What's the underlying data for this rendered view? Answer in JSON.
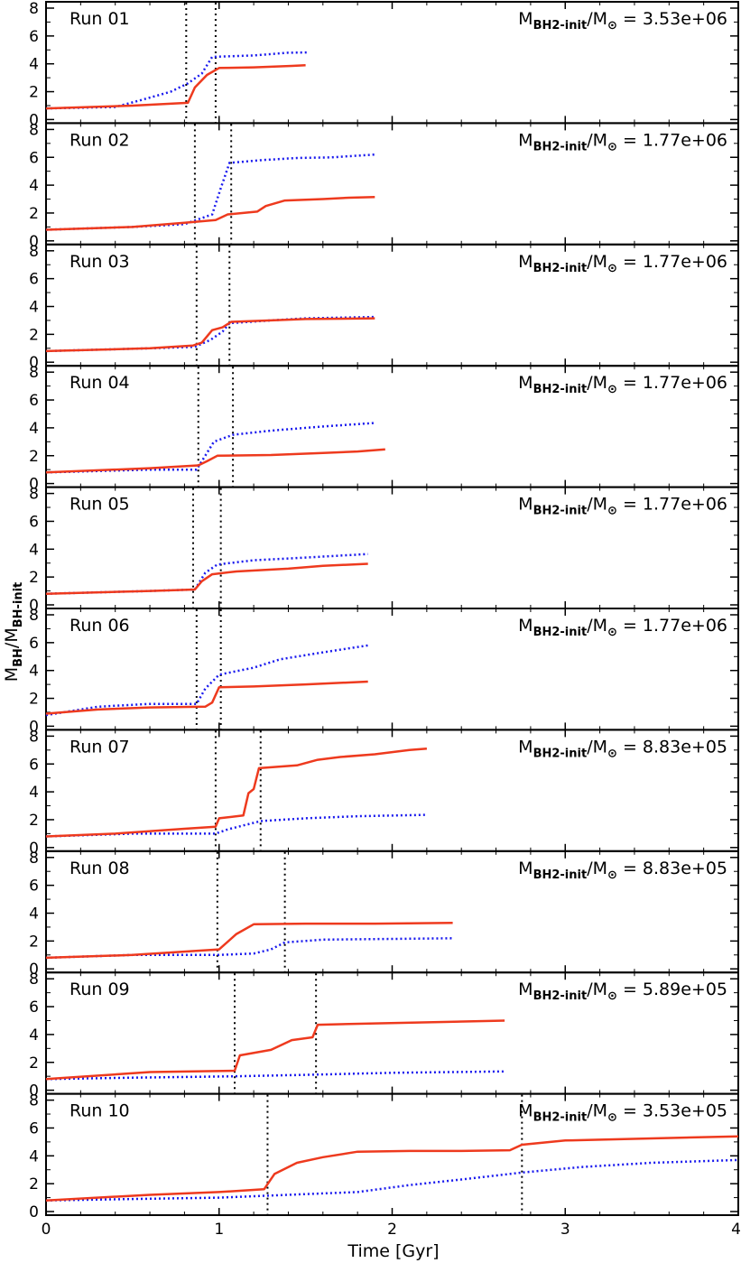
{
  "chart_data": {
    "type": "line",
    "xlabel": "Time [Gyr]",
    "ylabel": {
      "main": "M",
      "sub1": "BH",
      "slash": "/M",
      "sub2": "BH-init"
    },
    "xlim": [
      0,
      4
    ],
    "ylim": [
      0,
      8
    ],
    "x_ticks": [
      0,
      1,
      2,
      3,
      4
    ],
    "y_ticks": [
      0,
      2,
      4,
      6,
      8
    ],
    "mass_label_parts": {
      "prefix": "M",
      "sub": "BH2-init",
      "slash": "/M",
      "sun": "⊙",
      "eq": " = "
    },
    "colors": {
      "red": "#ee3a1e",
      "blue": "#1a1aee",
      "vline": "#000000"
    },
    "series_names": [
      "red solid",
      "blue dotted"
    ],
    "panels": [
      {
        "run": "Run 01",
        "mass": "3.53e+06",
        "vlines": [
          0.81,
          0.98
        ],
        "red": [
          [
            0,
            0.8
          ],
          [
            0.5,
            1.0
          ],
          [
            0.82,
            1.2
          ],
          [
            0.86,
            2.3
          ],
          [
            0.93,
            3.2
          ],
          [
            1.0,
            3.7
          ],
          [
            1.2,
            3.75
          ],
          [
            1.42,
            3.85
          ],
          [
            1.5,
            3.9
          ]
        ],
        "blue": [
          [
            0,
            0.8
          ],
          [
            0.4,
            0.9
          ],
          [
            0.55,
            1.4
          ],
          [
            0.72,
            2.0
          ],
          [
            0.82,
            2.6
          ],
          [
            0.9,
            3.3
          ],
          [
            0.96,
            4.5
          ],
          [
            1.2,
            4.6
          ],
          [
            1.4,
            4.8
          ],
          [
            1.51,
            4.82
          ]
        ]
      },
      {
        "run": "Run 02",
        "mass": "1.77e+06",
        "vlines": [
          0.86,
          1.07
        ],
        "red": [
          [
            0,
            0.8
          ],
          [
            0.5,
            1.0
          ],
          [
            0.8,
            1.3
          ],
          [
            0.98,
            1.5
          ],
          [
            1.05,
            1.9
          ],
          [
            1.22,
            2.1
          ],
          [
            1.27,
            2.5
          ],
          [
            1.38,
            2.9
          ],
          [
            1.6,
            3.0
          ],
          [
            1.75,
            3.1
          ],
          [
            1.9,
            3.15
          ]
        ],
        "blue": [
          [
            0,
            0.8
          ],
          [
            0.5,
            1.0
          ],
          [
            0.8,
            1.2
          ],
          [
            0.96,
            1.9
          ],
          [
            1.01,
            3.8
          ],
          [
            1.06,
            5.6
          ],
          [
            1.25,
            5.8
          ],
          [
            1.45,
            5.95
          ],
          [
            1.65,
            6.0
          ],
          [
            1.9,
            6.2
          ]
        ]
      },
      {
        "run": "Run 03",
        "mass": "1.77e+06",
        "vlines": [
          0.87,
          1.06
        ],
        "red": [
          [
            0,
            0.8
          ],
          [
            0.6,
            1.0
          ],
          [
            0.85,
            1.2
          ],
          [
            0.9,
            1.4
          ],
          [
            0.96,
            2.3
          ],
          [
            1.02,
            2.5
          ],
          [
            1.07,
            2.9
          ],
          [
            1.3,
            3.0
          ],
          [
            1.5,
            3.1
          ],
          [
            1.9,
            3.15
          ]
        ],
        "blue": [
          [
            0,
            0.8
          ],
          [
            0.6,
            1.0
          ],
          [
            0.86,
            1.1
          ],
          [
            0.95,
            1.6
          ],
          [
            1.02,
            2.2
          ],
          [
            1.06,
            2.8
          ],
          [
            1.3,
            3.0
          ],
          [
            1.5,
            3.15
          ],
          [
            1.9,
            3.25
          ]
        ]
      },
      {
        "run": "Run 04",
        "mass": "1.77e+06",
        "vlines": [
          0.88,
          1.08
        ],
        "red": [
          [
            0,
            0.8
          ],
          [
            0.6,
            1.1
          ],
          [
            0.88,
            1.3
          ],
          [
            0.93,
            1.6
          ],
          [
            0.99,
            2.0
          ],
          [
            1.3,
            2.05
          ],
          [
            1.6,
            2.2
          ],
          [
            1.8,
            2.3
          ],
          [
            1.96,
            2.45
          ]
        ],
        "blue": [
          [
            0,
            0.8
          ],
          [
            0.6,
            1.0
          ],
          [
            0.87,
            1.0
          ],
          [
            0.92,
            2.0
          ],
          [
            0.97,
            3.0
          ],
          [
            1.08,
            3.5
          ],
          [
            1.3,
            3.8
          ],
          [
            1.6,
            4.1
          ],
          [
            1.9,
            4.35
          ]
        ]
      },
      {
        "run": "Run 05",
        "mass": "1.77e+06",
        "vlines": [
          0.85,
          1.01
        ],
        "red": [
          [
            0,
            0.8
          ],
          [
            0.6,
            1.0
          ],
          [
            0.86,
            1.1
          ],
          [
            0.9,
            1.7
          ],
          [
            0.96,
            2.2
          ],
          [
            1.1,
            2.4
          ],
          [
            1.4,
            2.6
          ],
          [
            1.6,
            2.8
          ],
          [
            1.86,
            2.95
          ]
        ],
        "blue": [
          [
            0,
            0.8
          ],
          [
            0.6,
            1.0
          ],
          [
            0.86,
            1.1
          ],
          [
            0.92,
            2.3
          ],
          [
            0.99,
            2.9
          ],
          [
            1.2,
            3.2
          ],
          [
            1.5,
            3.4
          ],
          [
            1.86,
            3.65
          ]
        ]
      },
      {
        "run": "Run 06",
        "mass": "1.77e+06",
        "vlines": [
          0.87,
          1.01
        ],
        "red": [
          [
            0,
            0.9
          ],
          [
            0.3,
            1.2
          ],
          [
            0.6,
            1.35
          ],
          [
            0.92,
            1.4
          ],
          [
            0.96,
            1.7
          ],
          [
            1.0,
            2.8
          ],
          [
            1.2,
            2.85
          ],
          [
            1.5,
            3.0
          ],
          [
            1.86,
            3.2
          ]
        ],
        "blue": [
          [
            0,
            0.8
          ],
          [
            0.3,
            1.4
          ],
          [
            0.6,
            1.6
          ],
          [
            0.87,
            1.6
          ],
          [
            0.92,
            2.7
          ],
          [
            1.0,
            3.7
          ],
          [
            1.2,
            4.2
          ],
          [
            1.35,
            4.8
          ],
          [
            1.6,
            5.3
          ],
          [
            1.86,
            5.8
          ]
        ]
      },
      {
        "run": "Run 07",
        "mass": "8.83e+05",
        "vlines": [
          0.98,
          1.24
        ],
        "red": [
          [
            0,
            0.8
          ],
          [
            0.4,
            1.0
          ],
          [
            0.8,
            1.35
          ],
          [
            0.98,
            1.5
          ],
          [
            1.0,
            2.1
          ],
          [
            1.14,
            2.3
          ],
          [
            1.17,
            3.9
          ],
          [
            1.2,
            4.2
          ],
          [
            1.23,
            5.7
          ],
          [
            1.45,
            5.9
          ],
          [
            1.57,
            6.3
          ],
          [
            1.7,
            6.5
          ],
          [
            1.9,
            6.7
          ],
          [
            2.1,
            7.0
          ],
          [
            2.2,
            7.1
          ]
        ],
        "blue": [
          [
            0,
            0.8
          ],
          [
            0.5,
            1.0
          ],
          [
            0.98,
            1.0
          ],
          [
            1.05,
            1.3
          ],
          [
            1.24,
            1.9
          ],
          [
            1.5,
            2.1
          ],
          [
            1.8,
            2.25
          ],
          [
            2.2,
            2.35
          ]
        ]
      },
      {
        "run": "Run 08",
        "mass": "8.83e+05",
        "vlines": [
          0.99,
          1.38
        ],
        "red": [
          [
            0,
            0.8
          ],
          [
            0.5,
            1.0
          ],
          [
            1.0,
            1.4
          ],
          [
            1.1,
            2.5
          ],
          [
            1.2,
            3.2
          ],
          [
            1.5,
            3.25
          ],
          [
            1.9,
            3.25
          ],
          [
            2.35,
            3.3
          ]
        ],
        "blue": [
          [
            0,
            0.8
          ],
          [
            0.5,
            1.0
          ],
          [
            0.99,
            1.0
          ],
          [
            1.2,
            1.1
          ],
          [
            1.3,
            1.4
          ],
          [
            1.38,
            1.9
          ],
          [
            1.6,
            2.1
          ],
          [
            2.35,
            2.2
          ]
        ]
      },
      {
        "run": "Run 09",
        "mass": "5.89e+05",
        "vlines": [
          1.09,
          1.56
        ],
        "red": [
          [
            0,
            0.8
          ],
          [
            0.6,
            1.3
          ],
          [
            1.09,
            1.4
          ],
          [
            1.12,
            2.5
          ],
          [
            1.3,
            2.9
          ],
          [
            1.42,
            3.6
          ],
          [
            1.54,
            3.8
          ],
          [
            1.57,
            4.7
          ],
          [
            1.9,
            4.8
          ],
          [
            2.3,
            4.9
          ],
          [
            2.65,
            5.0
          ]
        ],
        "blue": [
          [
            0,
            0.8
          ],
          [
            0.5,
            0.9
          ],
          [
            1.09,
            1.0
          ],
          [
            1.5,
            1.1
          ],
          [
            2.0,
            1.25
          ],
          [
            2.65,
            1.35
          ]
        ]
      },
      {
        "run": "Run 10",
        "mass": "3.53e+05",
        "vlines": [
          1.28,
          2.75
        ],
        "red": [
          [
            0,
            0.8
          ],
          [
            0.6,
            1.2
          ],
          [
            1.0,
            1.4
          ],
          [
            1.26,
            1.6
          ],
          [
            1.32,
            2.7
          ],
          [
            1.45,
            3.5
          ],
          [
            1.6,
            3.9
          ],
          [
            1.8,
            4.3
          ],
          [
            2.1,
            4.35
          ],
          [
            2.4,
            4.35
          ],
          [
            2.68,
            4.4
          ],
          [
            2.75,
            4.8
          ],
          [
            3.0,
            5.1
          ],
          [
            3.5,
            5.25
          ],
          [
            4.0,
            5.4
          ]
        ],
        "blue": [
          [
            0,
            0.8
          ],
          [
            0.5,
            0.9
          ],
          [
            1.0,
            1.0
          ],
          [
            1.5,
            1.25
          ],
          [
            1.8,
            1.4
          ],
          [
            2.1,
            1.9
          ],
          [
            2.4,
            2.3
          ],
          [
            2.75,
            2.8
          ],
          [
            3.1,
            3.2
          ],
          [
            3.5,
            3.5
          ],
          [
            4.0,
            3.7
          ]
        ]
      }
    ]
  }
}
